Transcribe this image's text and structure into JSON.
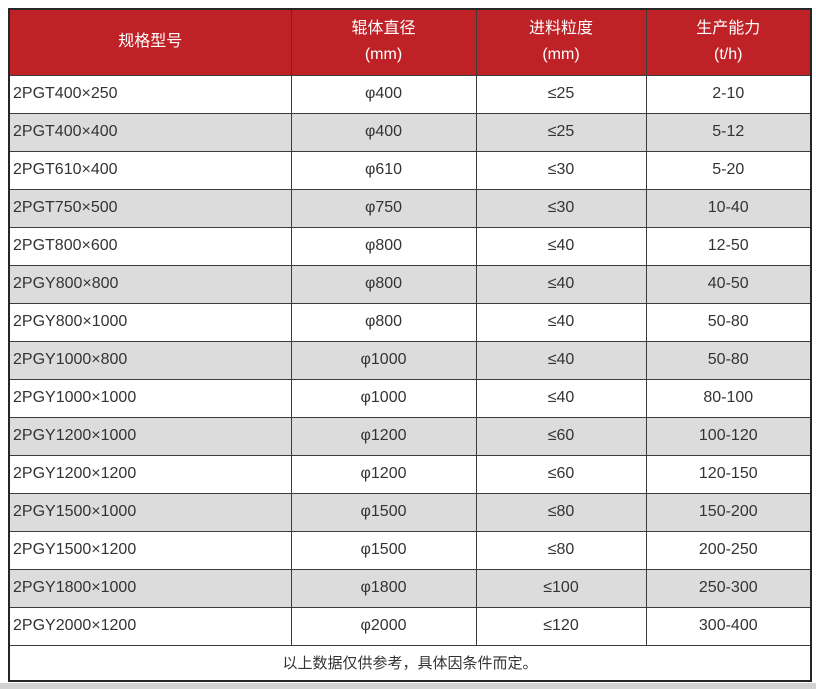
{
  "colors": {
    "header_bg": "#BE2126",
    "header_text": "#FFFFFF",
    "row_bg": "#FFFFFF",
    "row_alt_bg": "#DCDCDC",
    "border": "#3C3C3C",
    "text": "#333333"
  },
  "table": {
    "columns": [
      {
        "label": "规格型号",
        "unit": ""
      },
      {
        "label": "辊体直径",
        "unit": "(mm)"
      },
      {
        "label": "进料粒度",
        "unit": "(mm)"
      },
      {
        "label": "生产能力",
        "unit": "(t/h)"
      }
    ],
    "rows": [
      [
        "2PGT400×250",
        "φ400",
        "≤25",
        "2-10"
      ],
      [
        "2PGT400×400",
        "φ400",
        "≤25",
        "5-12"
      ],
      [
        "2PGT610×400",
        "φ610",
        "≤30",
        "5-20"
      ],
      [
        "2PGT750×500",
        "φ750",
        "≤30",
        "10-40"
      ],
      [
        "2PGT800×600",
        "φ800",
        "≤40",
        "12-50"
      ],
      [
        "2PGY800×800",
        "φ800",
        "≤40",
        "40-50"
      ],
      [
        "2PGY800×1000",
        "φ800",
        "≤40",
        "50-80"
      ],
      [
        "2PGY1000×800",
        "φ1000",
        "≤40",
        "50-80"
      ],
      [
        "2PGY1000×1000",
        "φ1000",
        "≤40",
        "80-100"
      ],
      [
        "2PGY1200×1000",
        "φ1200",
        "≤60",
        "100-120"
      ],
      [
        "2PGY1200×1200",
        "φ1200",
        "≤60",
        "120-150"
      ],
      [
        "2PGY1500×1000",
        "φ1500",
        "≤80",
        "150-200"
      ],
      [
        "2PGY1500×1200",
        "φ1500",
        "≤80",
        "200-250"
      ],
      [
        "2PGY1800×1000",
        "φ1800",
        "≤100",
        "250-300"
      ],
      [
        "2PGY2000×1200",
        "φ2000",
        "≤120",
        "300-400"
      ]
    ],
    "footer_note": "以上数据仅供参考，具体因条件而定。"
  }
}
